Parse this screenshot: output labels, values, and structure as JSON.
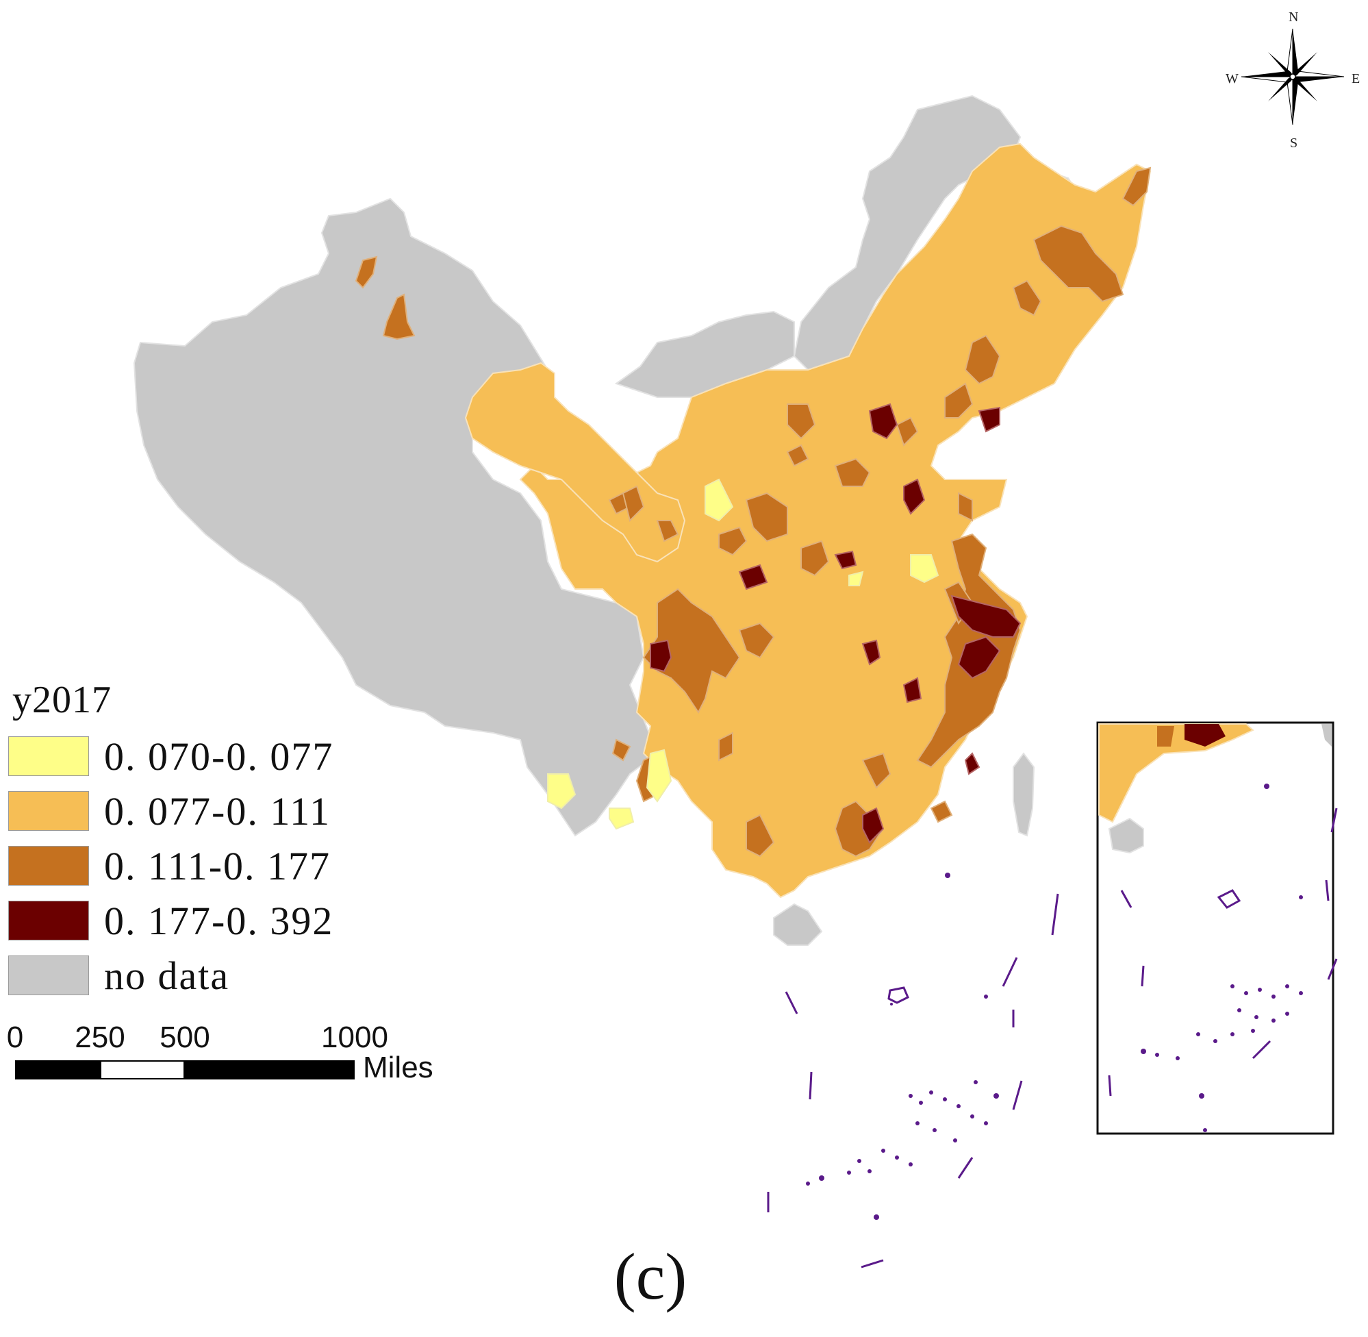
{
  "legend": {
    "title": "y2017",
    "items": [
      {
        "label": "0. 070-0. 077",
        "color": "#fefe88"
      },
      {
        "label": "0. 077-0. 111",
        "color": "#f6be55"
      },
      {
        "label": "0. 111-0. 177",
        "color": "#c5711f"
      },
      {
        "label": "0. 177-0. 392",
        "color": "#6b0000"
      },
      {
        "label": "no data",
        "color": "#c8c8c8"
      }
    ]
  },
  "scale_bar": {
    "ticks": [
      "0",
      "250",
      "500",
      "1000"
    ],
    "units": "Miles"
  },
  "compass": {
    "n": "N",
    "s": "S",
    "e": "E",
    "w": "W"
  },
  "caption": "(c)",
  "colors": {
    "boundary": "#e8e8e8",
    "nine_dash_line": "#5a1a8a",
    "frame": "#111111"
  }
}
